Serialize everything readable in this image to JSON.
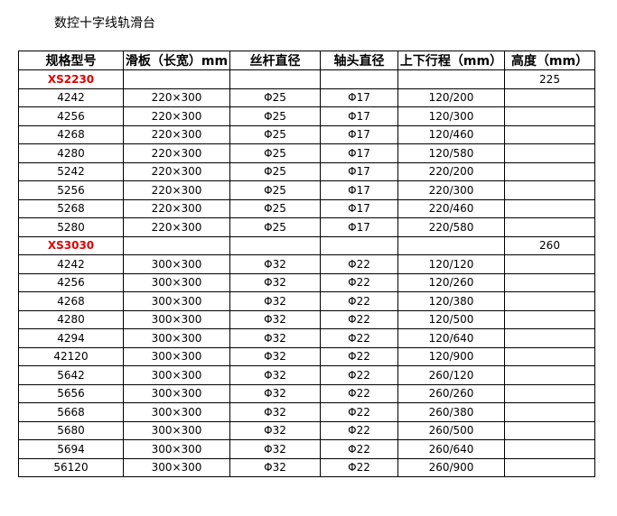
{
  "title": "数控十字线轨滑台",
  "headers": [
    "规格型号",
    "滑板（长宽）mm",
    "丝杆直径",
    "轴头直径",
    "上下行程（mm）",
    "高度（mm）"
  ],
  "groups": [
    {
      "model": "XS2230",
      "height": "225",
      "rows": [
        [
          "4242",
          "220×300",
          "Φ25",
          "Φ17",
          "120/200"
        ],
        [
          "4256",
          "220×300",
          "Φ25",
          "Φ17",
          "120/300"
        ],
        [
          "4268",
          "220×300",
          "Φ25",
          "Φ17",
          "120/460"
        ],
        [
          "4280",
          "220×300",
          "Φ25",
          "Φ17",
          "120/580"
        ],
        [
          "5242",
          "220×300",
          "Φ25",
          "Φ17",
          "220/200"
        ],
        [
          "5256",
          "220×300",
          "Φ25",
          "Φ17",
          "220/300"
        ],
        [
          "5268",
          "220×300",
          "Φ25",
          "Φ17",
          "220/460"
        ],
        [
          "5280",
          "220×300",
          "Φ25",
          "Φ17",
          "220/580"
        ]
      ]
    },
    {
      "model": "XS3030",
      "height": "260",
      "rows": [
        [
          "4242",
          "300×300",
          "Φ32",
          "Φ22",
          "120/120"
        ],
        [
          "4256",
          "300×300",
          "Φ32",
          "Φ22",
          "120/260"
        ],
        [
          "4268",
          "300×300",
          "Φ32",
          "Φ22",
          "120/380"
        ],
        [
          "4280",
          "300×300",
          "Φ32",
          "Φ22",
          "120/500"
        ],
        [
          "4294",
          "300×300",
          "Φ32",
          "Φ22",
          "120/640"
        ],
        [
          "42120",
          "300×300",
          "Φ32",
          "Φ22",
          "120/900"
        ],
        [
          "5642",
          "300×300",
          "Φ32",
          "Φ22",
          "260/120"
        ],
        [
          "5656",
          "300×300",
          "Φ32",
          "Φ22",
          "260/260"
        ],
        [
          "5668",
          "300×300",
          "Φ32",
          "Φ22",
          "260/380"
        ],
        [
          "5680",
          "300×300",
          "Φ32",
          "Φ22",
          "260/500"
        ],
        [
          "5694",
          "300×300",
          "Φ32",
          "Φ22",
          "260/640"
        ],
        [
          "56120",
          "300×300",
          "Φ32",
          "Φ22",
          "260/900"
        ]
      ]
    }
  ],
  "colors": {
    "group_model": "#e00000"
  }
}
